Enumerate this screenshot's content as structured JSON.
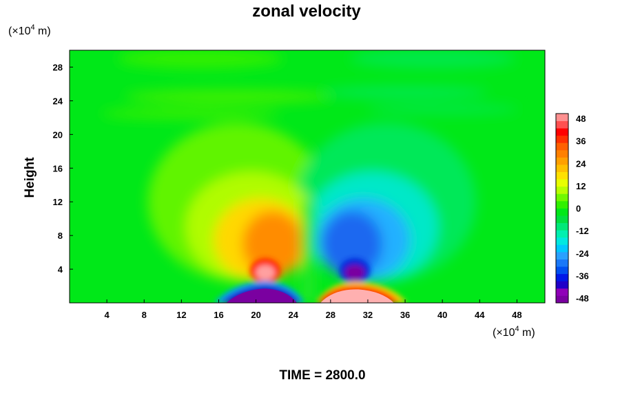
{
  "chart_data": {
    "type": "heatmap",
    "title": "zonal velocity",
    "ylabel": "Height",
    "y_unit": {
      "prefix": "(×10",
      "exp": "4",
      "suffix": " m)"
    },
    "x_unit": {
      "prefix": "(×10",
      "exp": "4",
      "suffix": " m)"
    },
    "xlim": [
      0,
      51
    ],
    "ylim": [
      0,
      30
    ],
    "x_ticks": [
      4,
      8,
      12,
      16,
      20,
      24,
      28,
      32,
      36,
      40,
      44,
      48
    ],
    "y_ticks": [
      4,
      8,
      12,
      16,
      20,
      24,
      28
    ],
    "colorbar": {
      "min": -48,
      "max": 48,
      "ticks": [
        48,
        36,
        24,
        12,
        0,
        -12,
        -24,
        -36,
        -48
      ],
      "colors": [
        "#7a00a0",
        "#9000b8",
        "#2000c8",
        "#0018e8",
        "#0050f0",
        "#1a78f8",
        "#2aa0ff",
        "#00c8ff",
        "#00e8e0",
        "#00f0b0",
        "#00e878",
        "#00e040",
        "#00e818",
        "#30f000",
        "#70f800",
        "#b8ff00",
        "#e8ff00",
        "#ffe000",
        "#ffc000",
        "#ffa000",
        "#ff8000",
        "#ff6000",
        "#ff3000",
        "#ff0000",
        "#ff5050",
        "#ff9090"
      ]
    }
  },
  "footer": {
    "time_text": "TIME = 2800.0"
  }
}
